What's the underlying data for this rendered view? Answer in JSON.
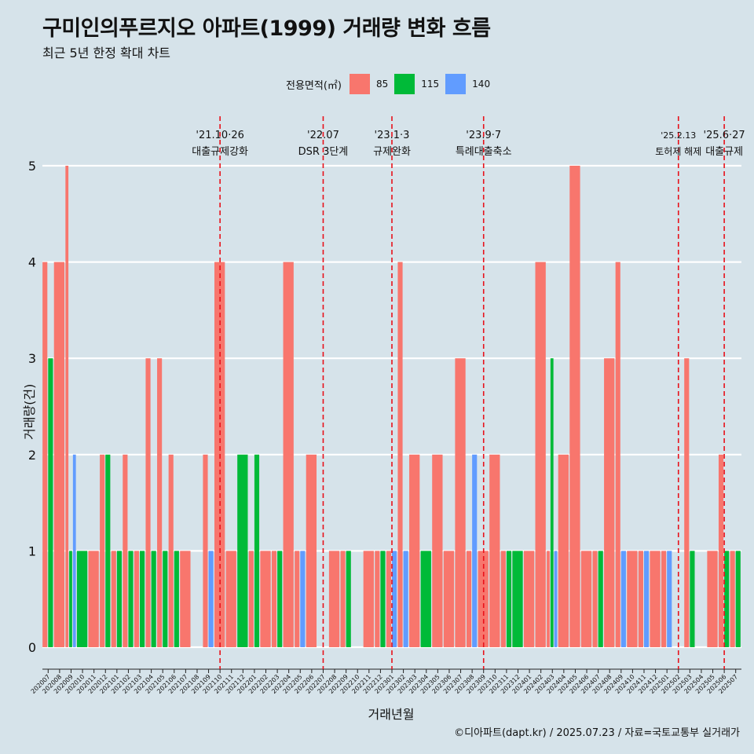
{
  "header": {
    "title": "구미인의푸르지오 아파트(1999) 거래량 변화 흐름",
    "subtitle": "최근 5년 한정 확대 차트"
  },
  "legend": {
    "title": "전용면적(㎡)",
    "items": [
      {
        "label": "85",
        "color": "#f8766d"
      },
      {
        "label": "115",
        "color": "#00ba38"
      },
      {
        "label": "140",
        "color": "#619cff"
      }
    ]
  },
  "caption": "©디아파트(dapt.kr) / 2025.07.23 / 자료=국토교통부 실거래가",
  "chart_data": {
    "type": "bar",
    "title": "구미인의푸르지오 아파트(1999) 거래량 변화 흐름",
    "xlabel": "거래년월",
    "ylabel": "거래량(건)",
    "ylim": [
      0,
      5
    ],
    "yticks": [
      0,
      1,
      2,
      3,
      4,
      5
    ],
    "grid": true,
    "legend_position": "top",
    "categories": [
      "202007",
      "202008",
      "202009",
      "202010",
      "202011",
      "202012",
      "202101",
      "202102",
      "202103",
      "202104",
      "202105",
      "202106",
      "202107",
      "202108",
      "202109",
      "202110",
      "202111",
      "202112",
      "202201",
      "202202",
      "202203",
      "202204",
      "202205",
      "202206",
      "202207",
      "202208",
      "202209",
      "202210",
      "202211",
      "202212",
      "202301",
      "202302",
      "202303",
      "202304",
      "202305",
      "202306",
      "202307",
      "202308",
      "202309",
      "202310",
      "202311",
      "202312",
      "202401",
      "202402",
      "202403",
      "202404",
      "202405",
      "202406",
      "202407",
      "202408",
      "202409",
      "202410",
      "202411",
      "202412",
      "202501",
      "202502",
      "202503",
      "202504",
      "202505",
      "202506",
      "202507"
    ],
    "series": [
      {
        "name": "85",
        "color": "#f8766d",
        "values": [
          4,
          4,
          5,
          0,
          1,
          2,
          1,
          2,
          1,
          3,
          3,
          2,
          1,
          0,
          2,
          4,
          1,
          0,
          1,
          1,
          1,
          4,
          1,
          2,
          0,
          1,
          1,
          0,
          1,
          1,
          1,
          4,
          2,
          0,
          2,
          1,
          3,
          1,
          1,
          2,
          1,
          0,
          1,
          4,
          1,
          2,
          5,
          1,
          1,
          3,
          4,
          1,
          1,
          1,
          1,
          0,
          3,
          0,
          1,
          2,
          1
        ]
      },
      {
        "name": "115",
        "color": "#00ba38",
        "values": [
          3,
          0,
          1,
          1,
          0,
          2,
          1,
          1,
          1,
          1,
          1,
          1,
          0,
          0,
          0,
          0,
          0,
          2,
          2,
          0,
          1,
          0,
          0,
          0,
          0,
          0,
          1,
          0,
          0,
          1,
          0,
          0,
          0,
          1,
          0,
          0,
          0,
          0,
          0,
          0,
          1,
          1,
          0,
          0,
          3,
          0,
          0,
          0,
          1,
          0,
          0,
          0,
          0,
          0,
          0,
          0,
          1,
          0,
          0,
          1,
          1
        ]
      },
      {
        "name": "140",
        "color": "#619cff",
        "values": [
          0,
          0,
          2,
          0,
          0,
          0,
          0,
          0,
          0,
          0,
          0,
          0,
          0,
          0,
          1,
          0,
          0,
          0,
          0,
          0,
          0,
          0,
          1,
          0,
          0,
          0,
          0,
          0,
          0,
          0,
          1,
          1,
          0,
          0,
          0,
          0,
          0,
          2,
          0,
          0,
          0,
          0,
          0,
          0,
          1,
          0,
          0,
          0,
          0,
          0,
          1,
          0,
          1,
          0,
          1,
          0,
          0,
          0,
          0,
          0,
          0
        ]
      }
    ],
    "annotations": [
      {
        "month": "202110",
        "date": "'21.10·26",
        "label": "대출규제강화"
      },
      {
        "month": "202207",
        "date": "'22.07",
        "label": "DSR 3단계"
      },
      {
        "month": "202301",
        "date": "'23.1·3",
        "label": "규제완화"
      },
      {
        "month": "202309",
        "date": "'23.9·7",
        "label": "특례대출축소"
      },
      {
        "month": "202502",
        "date": "'25.2.13",
        "label": "토허제 해제"
      },
      {
        "month": "202506",
        "date": "'25.6·27",
        "label": "대출규제"
      }
    ]
  }
}
